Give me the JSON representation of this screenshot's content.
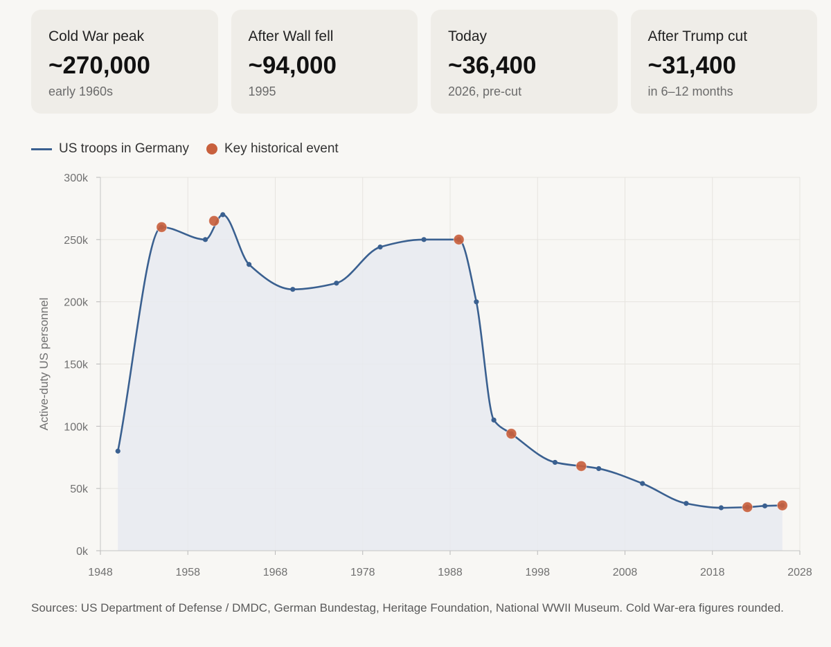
{
  "cards": [
    {
      "label": "Cold War peak",
      "value": "~270,000",
      "sub": "early 1960s"
    },
    {
      "label": "After Wall fell",
      "value": "~94,000",
      "sub": "1995"
    },
    {
      "label": "Today",
      "value": "~36,400",
      "sub": "2026, pre-cut"
    },
    {
      "label": "After Trump cut",
      "value": "~31,400",
      "sub": "in 6–12 months"
    }
  ],
  "legend": {
    "series_label": "US troops in Germany",
    "event_label": "Key historical event"
  },
  "sources": "Sources: US Department of Defense / DMDC, German Bundestag, Heritage Foundation, National WWII Museum. Cold War-era figures rounded.",
  "colors": {
    "line": "#3a6090",
    "fill": "#e7eaf0",
    "event": "#c8603d"
  },
  "chart_data": {
    "type": "area",
    "ylabel": "Active-duty US personnel",
    "xlim": [
      1948,
      2028
    ],
    "ylim": [
      0,
      300000
    ],
    "x_ticks": [
      1948,
      1958,
      1968,
      1978,
      1988,
      1998,
      2008,
      2018,
      2028
    ],
    "y_ticks": [
      {
        "value": 0,
        "label": "0k"
      },
      {
        "value": 50000,
        "label": "50k"
      },
      {
        "value": 100000,
        "label": "100k"
      },
      {
        "value": 150000,
        "label": "150k"
      },
      {
        "value": 200000,
        "label": "200k"
      },
      {
        "value": 250000,
        "label": "250k"
      },
      {
        "value": 300000,
        "label": "300k"
      }
    ],
    "grid": true,
    "series": [
      {
        "name": "US troops in Germany",
        "points": [
          [
            1950,
            80000
          ],
          [
            1955,
            260000
          ],
          [
            1960,
            250000
          ],
          [
            1962,
            270000
          ],
          [
            1965,
            230000
          ],
          [
            1970,
            210000
          ],
          [
            1975,
            215000
          ],
          [
            1980,
            244000
          ],
          [
            1985,
            250000
          ],
          [
            1989,
            250000
          ],
          [
            1991,
            200000
          ],
          [
            1993,
            105000
          ],
          [
            1995,
            94000
          ],
          [
            2000,
            71000
          ],
          [
            2005,
            66000
          ],
          [
            2010,
            54000
          ],
          [
            2015,
            38000
          ],
          [
            2019,
            34500
          ],
          [
            2022,
            35000
          ],
          [
            2024,
            36000
          ],
          [
            2026,
            36400
          ]
        ]
      }
    ],
    "events": [
      [
        1955,
        260000
      ],
      [
        1961,
        265000
      ],
      [
        1989,
        250000
      ],
      [
        1995,
        94000
      ],
      [
        2003,
        68000
      ],
      [
        2022,
        35000
      ],
      [
        2026,
        36400
      ]
    ]
  }
}
